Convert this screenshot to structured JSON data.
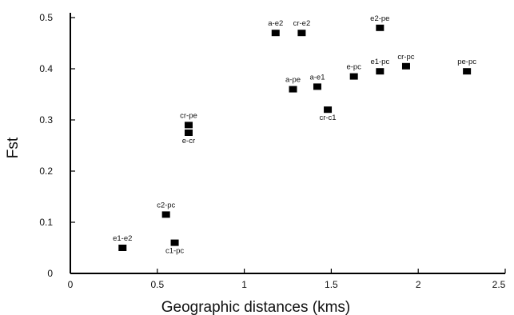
{
  "chart_data": {
    "type": "scatter",
    "title": "",
    "xlabel": "Geographic distances (kms)",
    "ylabel": "Fst",
    "xlim": [
      0,
      2.5
    ],
    "ylim": [
      0,
      0.5
    ],
    "grid": false,
    "legend": false,
    "x_ticks": [
      {
        "value": 0,
        "label": "0"
      },
      {
        "value": 0.5,
        "label": "0.5"
      },
      {
        "value": 1,
        "label": "1"
      },
      {
        "value": 1.5,
        "label": "1.5"
      },
      {
        "value": 2,
        "label": "2"
      },
      {
        "value": 2.5,
        "label": "2.5"
      }
    ],
    "y_ticks": [
      {
        "value": 0,
        "label": "0"
      },
      {
        "value": 0.1,
        "label": "0.1"
      },
      {
        "value": 0.2,
        "label": "0.2"
      },
      {
        "value": 0.3,
        "label": "0.3"
      },
      {
        "value": 0.4,
        "label": "0.4"
      },
      {
        "value": 0.5,
        "label": "0.5"
      }
    ],
    "points": [
      {
        "label": "e1-e2",
        "x": 0.3,
        "y": 0.05
      },
      {
        "label": "c2-pc",
        "x": 0.55,
        "y": 0.115
      },
      {
        "label": "c1-pc",
        "x": 0.6,
        "y": 0.06
      },
      {
        "label": "cr-pe",
        "x": 0.68,
        "y": 0.29
      },
      {
        "label": "e-cr",
        "x": 0.68,
        "y": 0.275
      },
      {
        "label": "a-e2",
        "x": 1.18,
        "y": 0.47
      },
      {
        "label": "cr-e2",
        "x": 1.33,
        "y": 0.47
      },
      {
        "label": "a-pe",
        "x": 1.28,
        "y": 0.36
      },
      {
        "label": "a-e1",
        "x": 1.42,
        "y": 0.365
      },
      {
        "label": "cr-c1",
        "x": 1.48,
        "y": 0.32
      },
      {
        "label": "e-pc",
        "x": 1.63,
        "y": 0.385
      },
      {
        "label": "e2-pe",
        "x": 1.78,
        "y": 0.48
      },
      {
        "label": "e1-pc",
        "x": 1.78,
        "y": 0.395
      },
      {
        "label": "cr-pc",
        "x": 1.93,
        "y": 0.405
      },
      {
        "label": "pe-pc",
        "x": 2.28,
        "y": 0.395
      }
    ]
  }
}
